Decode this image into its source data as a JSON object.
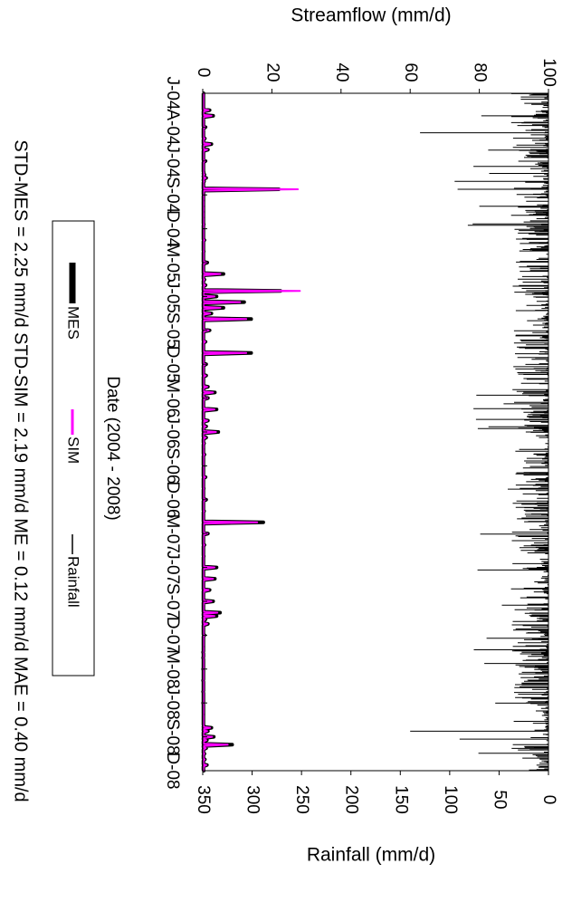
{
  "chart_data": {
    "type": "line",
    "orientation": "rotated 90° clockwise",
    "xlabel": "Date (2004 - 2008)",
    "y_top_label": "Streamflow (mm/d)",
    "y_bottom_label": "Rainfall (mm/d)",
    "streamflow_ticks": [
      0,
      20,
      40,
      60,
      80,
      100
    ],
    "rainfall_ticks": [
      350,
      300,
      250,
      200,
      150,
      100,
      50,
      0
    ],
    "streamflow_range": [
      0,
      100
    ],
    "rainfall_range": [
      350,
      0
    ],
    "x_ticks": [
      "J-04",
      "A-04",
      "J-04",
      "S-04",
      "D-04",
      "M-05",
      "J-05",
      "S-05",
      "D-05",
      "M-06",
      "J-06",
      "S-06",
      "D-06",
      "M-07",
      "J-07",
      "S-07",
      "D-07",
      "M-08",
      "J-08",
      "S-08",
      "D-08"
    ],
    "legend": {
      "mes": "MES",
      "sim": "SIM",
      "rain": "Rainfall"
    },
    "stats_text": "STD-MES = 2.25 mm/d  STD-SIM = 2.19 mm/d  ME = 0.12 mm/d  MAE = 0.40 mm/d",
    "colors": {
      "mes": "#000000",
      "sim": "#ff00ff",
      "rain": "#000000"
    },
    "series": [
      {
        "name": "MES",
        "x_month_index": [
          0,
          1.5,
          2,
          3,
          4,
          4.5,
          5,
          6,
          7,
          7.2,
          7.5,
          7.8,
          8,
          8.5,
          9,
          9.5,
          10,
          10.5,
          11,
          11.6,
          12,
          13,
          14,
          15,
          16,
          16.5,
          17,
          17.5,
          18,
          18.5,
          19,
          19.5,
          20,
          21,
          22,
          23,
          24,
          25,
          26,
          26.5,
          27,
          28,
          29,
          29.5,
          30,
          30.5,
          31,
          31.5,
          32,
          33,
          34,
          35,
          36,
          37,
          38,
          39,
          40,
          41,
          42,
          43,
          44,
          45,
          46,
          46.3,
          46.6,
          47,
          48,
          49,
          49.5,
          50,
          51,
          52,
          53,
          54,
          55,
          56,
          56.2,
          56.5,
          57,
          57.3,
          57.7,
          58,
          58.5,
          59,
          59.5,
          60
        ],
        "values": [
          0.2,
          2,
          3,
          0.8,
          0.6,
          2.5,
          1.5,
          0.8,
          0.3,
          0.5,
          1,
          0.4,
          0.2,
          22,
          0.3,
          0.2,
          0.2,
          0.2,
          0.2,
          0.3,
          0.2,
          0.5,
          0.3,
          1.3,
          6,
          0.5,
          0.8,
          22.5,
          4,
          12,
          6,
          2.5,
          14,
          2,
          0.8,
          14,
          1,
          1,
          1.5,
          3.5,
          1.5,
          4,
          1.5,
          1,
          4.5,
          1,
          0.4,
          0.2,
          0.5,
          0.3,
          0.8,
          0.3,
          1,
          0.4,
          17.5,
          1.5,
          0.5,
          0.3,
          4,
          3.5,
          2,
          3,
          5,
          4,
          0.8,
          1.5,
          0.5,
          0.2,
          0.1,
          0.1,
          0.1,
          0.1,
          0.1,
          0.1,
          0.2,
          0.3,
          2.5,
          1.5,
          3.2,
          1.2,
          8.5,
          1,
          0.5,
          0.6,
          1.2,
          0.3
        ],
        "note": "approximate"
      }
    ]
  }
}
